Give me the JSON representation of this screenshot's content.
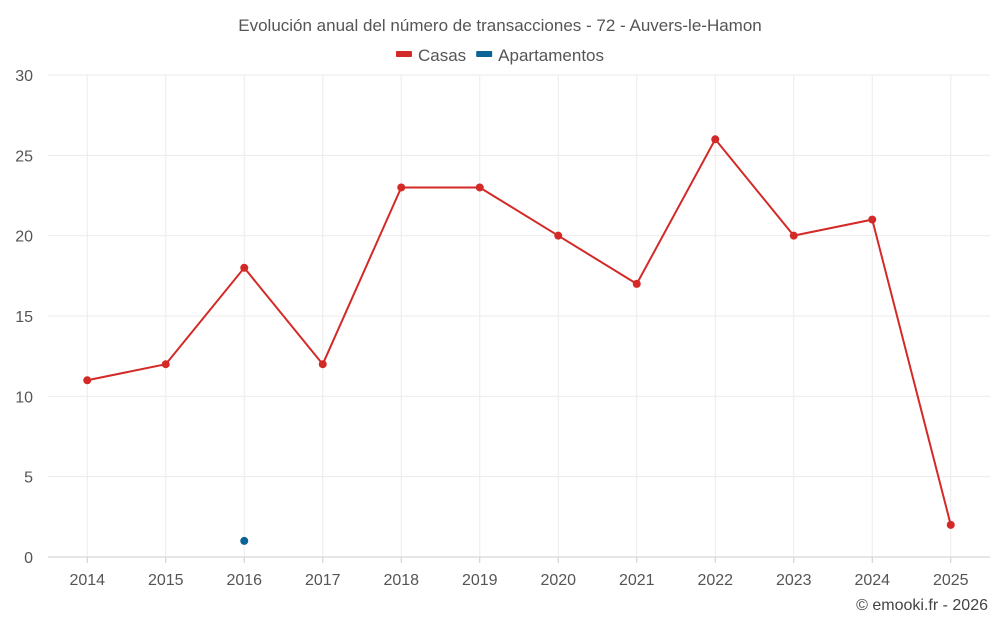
{
  "chart_data": {
    "type": "line",
    "title": "Evolución anual del número de transacciones - 72 - Auvers-le-Hamon",
    "categories": [
      "2014",
      "2015",
      "2016",
      "2017",
      "2018",
      "2019",
      "2020",
      "2021",
      "2022",
      "2023",
      "2024",
      "2025"
    ],
    "series": [
      {
        "name": "Casas",
        "color": "#d32a27",
        "values": [
          11,
          12,
          18,
          12,
          23,
          23,
          20,
          17,
          26,
          20,
          21,
          2
        ]
      },
      {
        "name": "Apartamentos",
        "color": "#0b6496",
        "values": [
          null,
          null,
          1,
          null,
          null,
          null,
          null,
          null,
          null,
          null,
          null,
          null
        ]
      }
    ],
    "ylim": [
      0,
      30
    ],
    "yticks": [
      0,
      5,
      10,
      15,
      20,
      25,
      30
    ],
    "xlabel": "",
    "ylabel": "",
    "grid": true,
    "legend_position": "top-center"
  },
  "credit": "© emooki.fr - 2026"
}
